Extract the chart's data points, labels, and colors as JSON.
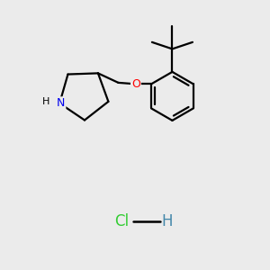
{
  "background_color": "#ebebeb",
  "atom_colors": {
    "N": "#0000ee",
    "O": "#ff0000",
    "Cl": "#33cc33",
    "H_hcl": "#4488aa",
    "C": "#000000"
  },
  "bond_color": "#000000",
  "bond_lw": 1.6,
  "fig_w": 3.0,
  "fig_h": 3.0,
  "dpi": 100
}
